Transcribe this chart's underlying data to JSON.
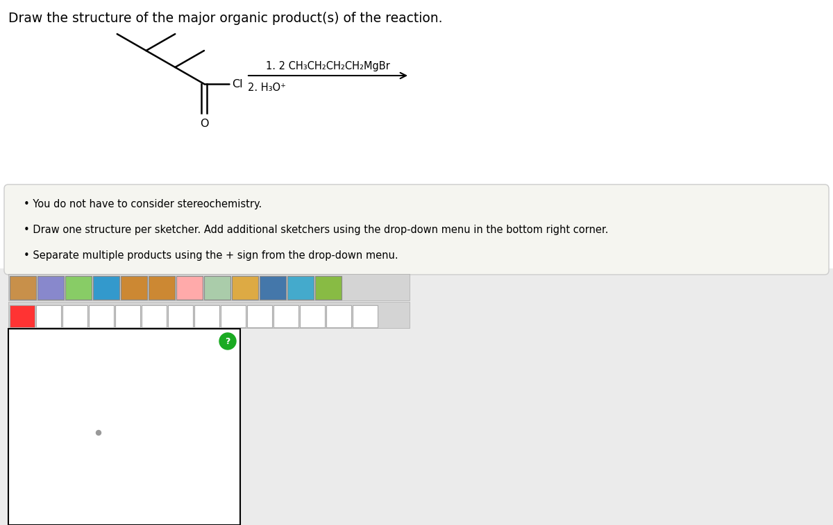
{
  "title": "Draw the structure of the major organic product(s) of the reaction.",
  "title_fontsize": 13.5,
  "title_color": "#000000",
  "background_color": "#ffffff",
  "bullet_points": [
    "You do not have to consider stereochemistry.",
    "Draw one structure per sketcher. Add additional sketchers using the drop-down menu in the bottom right corner.",
    "Separate multiple products using the + sign from the drop-down menu."
  ],
  "instruction_box_color": "#f5f5f0",
  "instruction_box_edge": "#cccccc",
  "sketcher_box_color": "#ffffff",
  "sketcher_box_edge": "#000000",
  "arrow_color": "#000000",
  "molecule_color": "#000000",
  "page_bg": "#ffffff",
  "bottom_bg": "#e8e8e8",
  "toolbar_bg": "#e0e0e0",
  "toolbar_edge": "#aaaaaa"
}
